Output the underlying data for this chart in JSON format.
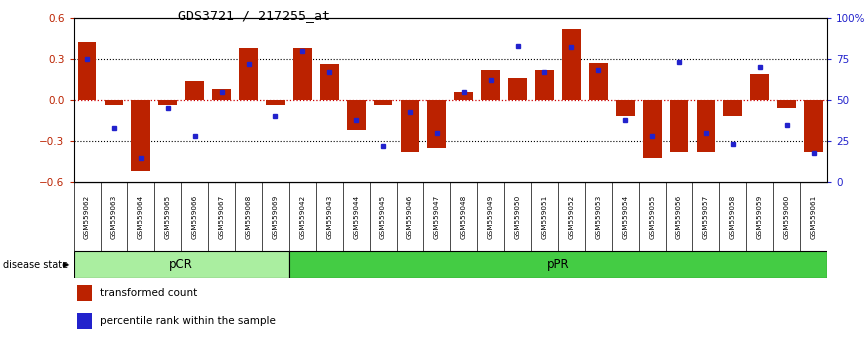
{
  "title": "GDS3721 / 217255_at",
  "samples": [
    "GSM559062",
    "GSM559063",
    "GSM559064",
    "GSM559065",
    "GSM559066",
    "GSM559067",
    "GSM559068",
    "GSM559069",
    "GSM559042",
    "GSM559043",
    "GSM559044",
    "GSM559045",
    "GSM559046",
    "GSM559047",
    "GSM559048",
    "GSM559049",
    "GSM559050",
    "GSM559051",
    "GSM559052",
    "GSM559053",
    "GSM559054",
    "GSM559055",
    "GSM559056",
    "GSM559057",
    "GSM559058",
    "GSM559059",
    "GSM559060",
    "GSM559061"
  ],
  "transformed_count": [
    0.42,
    -0.04,
    -0.52,
    -0.04,
    0.14,
    0.08,
    0.38,
    -0.04,
    0.38,
    0.26,
    -0.22,
    -0.04,
    -0.38,
    -0.35,
    0.06,
    0.22,
    0.16,
    0.22,
    0.52,
    0.27,
    -0.12,
    -0.42,
    -0.38,
    -0.38,
    -0.12,
    0.19,
    -0.06,
    -0.38
  ],
  "percentile_rank": [
    75,
    33,
    15,
    45,
    28,
    55,
    72,
    40,
    80,
    67,
    38,
    22,
    43,
    30,
    55,
    62,
    83,
    67,
    82,
    68,
    38,
    28,
    73,
    30,
    23,
    70,
    35,
    18
  ],
  "pCR_count": 8,
  "bar_color": "#bb2200",
  "dot_color": "#2222cc",
  "background_color": "#ffffff",
  "tick_area_color": "#cccccc",
  "pCR_color": "#aaeea0",
  "pPR_color": "#44cc44",
  "ylim": [
    -0.6,
    0.6
  ],
  "yticks_left": [
    -0.6,
    -0.3,
    0.0,
    0.3,
    0.6
  ],
  "right_ytick_percents": [
    0,
    25,
    50,
    75,
    100
  ],
  "legend_items": [
    "transformed count",
    "percentile rank within the sample"
  ]
}
